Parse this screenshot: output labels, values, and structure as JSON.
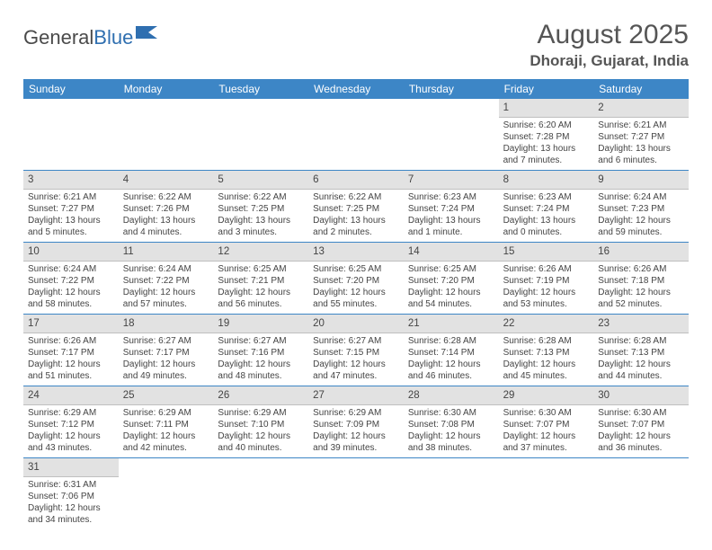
{
  "logo": {
    "text_a": "General",
    "text_b": "Blue",
    "flag_color": "#2f6fb0"
  },
  "header": {
    "month_title": "August 2025",
    "location": "Dhoraji, Gujarat, India"
  },
  "colors": {
    "header_bar": "#3d86c6",
    "row_divider": "#3d86c6",
    "daynum_bg": "#e2e2e2",
    "daynum_border": "#bfbfbf",
    "text": "#444444",
    "background": "#ffffff"
  },
  "days_of_week": [
    "Sunday",
    "Monday",
    "Tuesday",
    "Wednesday",
    "Thursday",
    "Friday",
    "Saturday"
  ],
  "weeks": [
    [
      {
        "empty": true
      },
      {
        "empty": true
      },
      {
        "empty": true
      },
      {
        "empty": true
      },
      {
        "empty": true
      },
      {
        "num": "1",
        "sunrise": "Sunrise: 6:20 AM",
        "sunset": "Sunset: 7:28 PM",
        "daylight": "Daylight: 13 hours and 7 minutes."
      },
      {
        "num": "2",
        "sunrise": "Sunrise: 6:21 AM",
        "sunset": "Sunset: 7:27 PM",
        "daylight": "Daylight: 13 hours and 6 minutes."
      }
    ],
    [
      {
        "num": "3",
        "sunrise": "Sunrise: 6:21 AM",
        "sunset": "Sunset: 7:27 PM",
        "daylight": "Daylight: 13 hours and 5 minutes."
      },
      {
        "num": "4",
        "sunrise": "Sunrise: 6:22 AM",
        "sunset": "Sunset: 7:26 PM",
        "daylight": "Daylight: 13 hours and 4 minutes."
      },
      {
        "num": "5",
        "sunrise": "Sunrise: 6:22 AM",
        "sunset": "Sunset: 7:25 PM",
        "daylight": "Daylight: 13 hours and 3 minutes."
      },
      {
        "num": "6",
        "sunrise": "Sunrise: 6:22 AM",
        "sunset": "Sunset: 7:25 PM",
        "daylight": "Daylight: 13 hours and 2 minutes."
      },
      {
        "num": "7",
        "sunrise": "Sunrise: 6:23 AM",
        "sunset": "Sunset: 7:24 PM",
        "daylight": "Daylight: 13 hours and 1 minute."
      },
      {
        "num": "8",
        "sunrise": "Sunrise: 6:23 AM",
        "sunset": "Sunset: 7:24 PM",
        "daylight": "Daylight: 13 hours and 0 minutes."
      },
      {
        "num": "9",
        "sunrise": "Sunrise: 6:24 AM",
        "sunset": "Sunset: 7:23 PM",
        "daylight": "Daylight: 12 hours and 59 minutes."
      }
    ],
    [
      {
        "num": "10",
        "sunrise": "Sunrise: 6:24 AM",
        "sunset": "Sunset: 7:22 PM",
        "daylight": "Daylight: 12 hours and 58 minutes."
      },
      {
        "num": "11",
        "sunrise": "Sunrise: 6:24 AM",
        "sunset": "Sunset: 7:22 PM",
        "daylight": "Daylight: 12 hours and 57 minutes."
      },
      {
        "num": "12",
        "sunrise": "Sunrise: 6:25 AM",
        "sunset": "Sunset: 7:21 PM",
        "daylight": "Daylight: 12 hours and 56 minutes."
      },
      {
        "num": "13",
        "sunrise": "Sunrise: 6:25 AM",
        "sunset": "Sunset: 7:20 PM",
        "daylight": "Daylight: 12 hours and 55 minutes."
      },
      {
        "num": "14",
        "sunrise": "Sunrise: 6:25 AM",
        "sunset": "Sunset: 7:20 PM",
        "daylight": "Daylight: 12 hours and 54 minutes."
      },
      {
        "num": "15",
        "sunrise": "Sunrise: 6:26 AM",
        "sunset": "Sunset: 7:19 PM",
        "daylight": "Daylight: 12 hours and 53 minutes."
      },
      {
        "num": "16",
        "sunrise": "Sunrise: 6:26 AM",
        "sunset": "Sunset: 7:18 PM",
        "daylight": "Daylight: 12 hours and 52 minutes."
      }
    ],
    [
      {
        "num": "17",
        "sunrise": "Sunrise: 6:26 AM",
        "sunset": "Sunset: 7:17 PM",
        "daylight": "Daylight: 12 hours and 51 minutes."
      },
      {
        "num": "18",
        "sunrise": "Sunrise: 6:27 AM",
        "sunset": "Sunset: 7:17 PM",
        "daylight": "Daylight: 12 hours and 49 minutes."
      },
      {
        "num": "19",
        "sunrise": "Sunrise: 6:27 AM",
        "sunset": "Sunset: 7:16 PM",
        "daylight": "Daylight: 12 hours and 48 minutes."
      },
      {
        "num": "20",
        "sunrise": "Sunrise: 6:27 AM",
        "sunset": "Sunset: 7:15 PM",
        "daylight": "Daylight: 12 hours and 47 minutes."
      },
      {
        "num": "21",
        "sunrise": "Sunrise: 6:28 AM",
        "sunset": "Sunset: 7:14 PM",
        "daylight": "Daylight: 12 hours and 46 minutes."
      },
      {
        "num": "22",
        "sunrise": "Sunrise: 6:28 AM",
        "sunset": "Sunset: 7:13 PM",
        "daylight": "Daylight: 12 hours and 45 minutes."
      },
      {
        "num": "23",
        "sunrise": "Sunrise: 6:28 AM",
        "sunset": "Sunset: 7:13 PM",
        "daylight": "Daylight: 12 hours and 44 minutes."
      }
    ],
    [
      {
        "num": "24",
        "sunrise": "Sunrise: 6:29 AM",
        "sunset": "Sunset: 7:12 PM",
        "daylight": "Daylight: 12 hours and 43 minutes."
      },
      {
        "num": "25",
        "sunrise": "Sunrise: 6:29 AM",
        "sunset": "Sunset: 7:11 PM",
        "daylight": "Daylight: 12 hours and 42 minutes."
      },
      {
        "num": "26",
        "sunrise": "Sunrise: 6:29 AM",
        "sunset": "Sunset: 7:10 PM",
        "daylight": "Daylight: 12 hours and 40 minutes."
      },
      {
        "num": "27",
        "sunrise": "Sunrise: 6:29 AM",
        "sunset": "Sunset: 7:09 PM",
        "daylight": "Daylight: 12 hours and 39 minutes."
      },
      {
        "num": "28",
        "sunrise": "Sunrise: 6:30 AM",
        "sunset": "Sunset: 7:08 PM",
        "daylight": "Daylight: 12 hours and 38 minutes."
      },
      {
        "num": "29",
        "sunrise": "Sunrise: 6:30 AM",
        "sunset": "Sunset: 7:07 PM",
        "daylight": "Daylight: 12 hours and 37 minutes."
      },
      {
        "num": "30",
        "sunrise": "Sunrise: 6:30 AM",
        "sunset": "Sunset: 7:07 PM",
        "daylight": "Daylight: 12 hours and 36 minutes."
      }
    ],
    [
      {
        "num": "31",
        "sunrise": "Sunrise: 6:31 AM",
        "sunset": "Sunset: 7:06 PM",
        "daylight": "Daylight: 12 hours and 34 minutes."
      },
      {
        "empty": true
      },
      {
        "empty": true
      },
      {
        "empty": true
      },
      {
        "empty": true
      },
      {
        "empty": true
      },
      {
        "empty": true
      }
    ]
  ]
}
